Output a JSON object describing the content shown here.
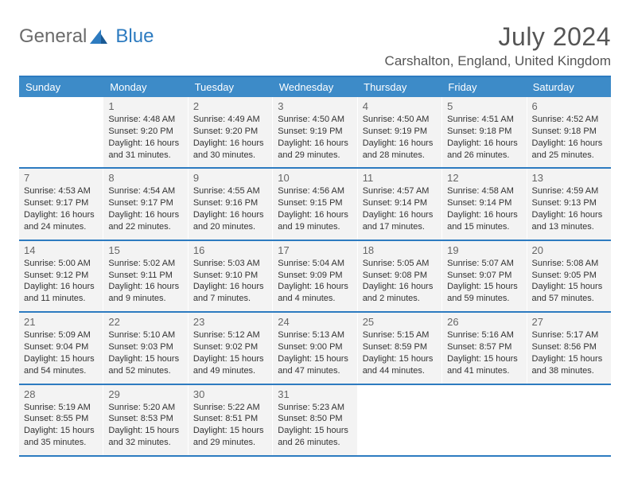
{
  "brand": {
    "text1": "General",
    "text2": "Blue"
  },
  "title": "July 2024",
  "location": "Carshalton, England, United Kingdom",
  "colors": {
    "header_bg": "#3d8bc8",
    "border": "#2d7bc0",
    "cell_bg": "#f3f3f3"
  },
  "weekdays": [
    "Sunday",
    "Monday",
    "Tuesday",
    "Wednesday",
    "Thursday",
    "Friday",
    "Saturday"
  ],
  "weeks": [
    [
      null,
      {
        "day": "1",
        "sunrise": "4:48 AM",
        "sunset": "9:20 PM",
        "daylight": "16 hours and 31 minutes."
      },
      {
        "day": "2",
        "sunrise": "4:49 AM",
        "sunset": "9:20 PM",
        "daylight": "16 hours and 30 minutes."
      },
      {
        "day": "3",
        "sunrise": "4:50 AM",
        "sunset": "9:19 PM",
        "daylight": "16 hours and 29 minutes."
      },
      {
        "day": "4",
        "sunrise": "4:50 AM",
        "sunset": "9:19 PM",
        "daylight": "16 hours and 28 minutes."
      },
      {
        "day": "5",
        "sunrise": "4:51 AM",
        "sunset": "9:18 PM",
        "daylight": "16 hours and 26 minutes."
      },
      {
        "day": "6",
        "sunrise": "4:52 AM",
        "sunset": "9:18 PM",
        "daylight": "16 hours and 25 minutes."
      }
    ],
    [
      {
        "day": "7",
        "sunrise": "4:53 AM",
        "sunset": "9:17 PM",
        "daylight": "16 hours and 24 minutes."
      },
      {
        "day": "8",
        "sunrise": "4:54 AM",
        "sunset": "9:17 PM",
        "daylight": "16 hours and 22 minutes."
      },
      {
        "day": "9",
        "sunrise": "4:55 AM",
        "sunset": "9:16 PM",
        "daylight": "16 hours and 20 minutes."
      },
      {
        "day": "10",
        "sunrise": "4:56 AM",
        "sunset": "9:15 PM",
        "daylight": "16 hours and 19 minutes."
      },
      {
        "day": "11",
        "sunrise": "4:57 AM",
        "sunset": "9:14 PM",
        "daylight": "16 hours and 17 minutes."
      },
      {
        "day": "12",
        "sunrise": "4:58 AM",
        "sunset": "9:14 PM",
        "daylight": "16 hours and 15 minutes."
      },
      {
        "day": "13",
        "sunrise": "4:59 AM",
        "sunset": "9:13 PM",
        "daylight": "16 hours and 13 minutes."
      }
    ],
    [
      {
        "day": "14",
        "sunrise": "5:00 AM",
        "sunset": "9:12 PM",
        "daylight": "16 hours and 11 minutes."
      },
      {
        "day": "15",
        "sunrise": "5:02 AM",
        "sunset": "9:11 PM",
        "daylight": "16 hours and 9 minutes."
      },
      {
        "day": "16",
        "sunrise": "5:03 AM",
        "sunset": "9:10 PM",
        "daylight": "16 hours and 7 minutes."
      },
      {
        "day": "17",
        "sunrise": "5:04 AM",
        "sunset": "9:09 PM",
        "daylight": "16 hours and 4 minutes."
      },
      {
        "day": "18",
        "sunrise": "5:05 AM",
        "sunset": "9:08 PM",
        "daylight": "16 hours and 2 minutes."
      },
      {
        "day": "19",
        "sunrise": "5:07 AM",
        "sunset": "9:07 PM",
        "daylight": "15 hours and 59 minutes."
      },
      {
        "day": "20",
        "sunrise": "5:08 AM",
        "sunset": "9:05 PM",
        "daylight": "15 hours and 57 minutes."
      }
    ],
    [
      {
        "day": "21",
        "sunrise": "5:09 AM",
        "sunset": "9:04 PM",
        "daylight": "15 hours and 54 minutes."
      },
      {
        "day": "22",
        "sunrise": "5:10 AM",
        "sunset": "9:03 PM",
        "daylight": "15 hours and 52 minutes."
      },
      {
        "day": "23",
        "sunrise": "5:12 AM",
        "sunset": "9:02 PM",
        "daylight": "15 hours and 49 minutes."
      },
      {
        "day": "24",
        "sunrise": "5:13 AM",
        "sunset": "9:00 PM",
        "daylight": "15 hours and 47 minutes."
      },
      {
        "day": "25",
        "sunrise": "5:15 AM",
        "sunset": "8:59 PM",
        "daylight": "15 hours and 44 minutes."
      },
      {
        "day": "26",
        "sunrise": "5:16 AM",
        "sunset": "8:57 PM",
        "daylight": "15 hours and 41 minutes."
      },
      {
        "day": "27",
        "sunrise": "5:17 AM",
        "sunset": "8:56 PM",
        "daylight": "15 hours and 38 minutes."
      }
    ],
    [
      {
        "day": "28",
        "sunrise": "5:19 AM",
        "sunset": "8:55 PM",
        "daylight": "15 hours and 35 minutes."
      },
      {
        "day": "29",
        "sunrise": "5:20 AM",
        "sunset": "8:53 PM",
        "daylight": "15 hours and 32 minutes."
      },
      {
        "day": "30",
        "sunrise": "5:22 AM",
        "sunset": "8:51 PM",
        "daylight": "15 hours and 29 minutes."
      },
      {
        "day": "31",
        "sunrise": "5:23 AM",
        "sunset": "8:50 PM",
        "daylight": "15 hours and 26 minutes."
      },
      null,
      null,
      null
    ]
  ],
  "labels": {
    "sunrise": "Sunrise:",
    "sunset": "Sunset:",
    "daylight": "Daylight:"
  }
}
